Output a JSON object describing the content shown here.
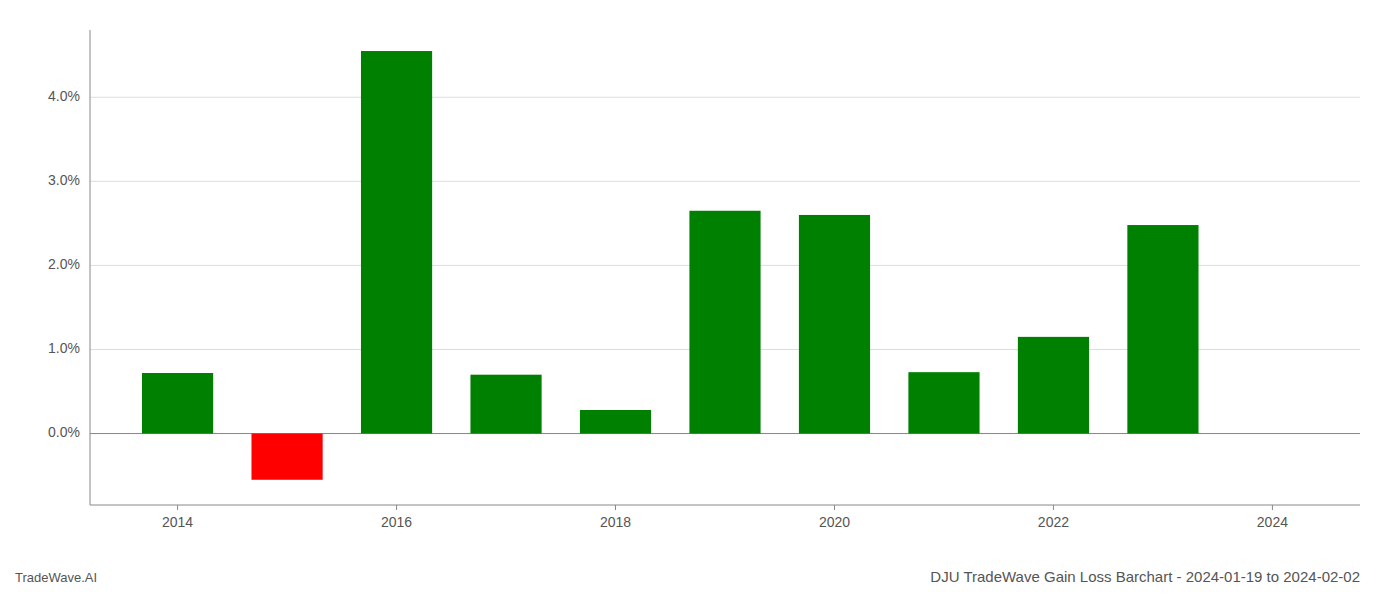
{
  "chart_data": {
    "type": "bar",
    "title": "DJU TradeWave Gain Loss Barchart - 2024-01-19 to 2024-02-02",
    "annotations": [
      "TradeWave.AI"
    ],
    "x": [
      2014,
      2015,
      2016,
      2017,
      2018,
      2019,
      2020,
      2021,
      2022,
      2023
    ],
    "values": [
      0.0072,
      -0.0055,
      0.0455,
      0.007,
      0.0028,
      0.0265,
      0.026,
      0.0073,
      0.0115,
      0.0248
    ],
    "colors": [
      "#008000",
      "#ff0000",
      "#008000",
      "#008000",
      "#008000",
      "#008000",
      "#008000",
      "#008000",
      "#008000",
      "#008000"
    ],
    "xlim": [
      2013.2,
      2024.8
    ],
    "ylim": [
      -0.0085,
      0.048
    ],
    "xticks": [
      2014,
      2016,
      2018,
      2020,
      2022,
      2024
    ],
    "yticks": [
      {
        "value": 0.0,
        "label": "0.0%"
      },
      {
        "value": 0.01,
        "label": "1.0%"
      },
      {
        "value": 0.02,
        "label": "2.0%"
      },
      {
        "value": 0.03,
        "label": "3.0%"
      },
      {
        "value": 0.04,
        "label": "4.0%"
      }
    ],
    "grid": true
  }
}
